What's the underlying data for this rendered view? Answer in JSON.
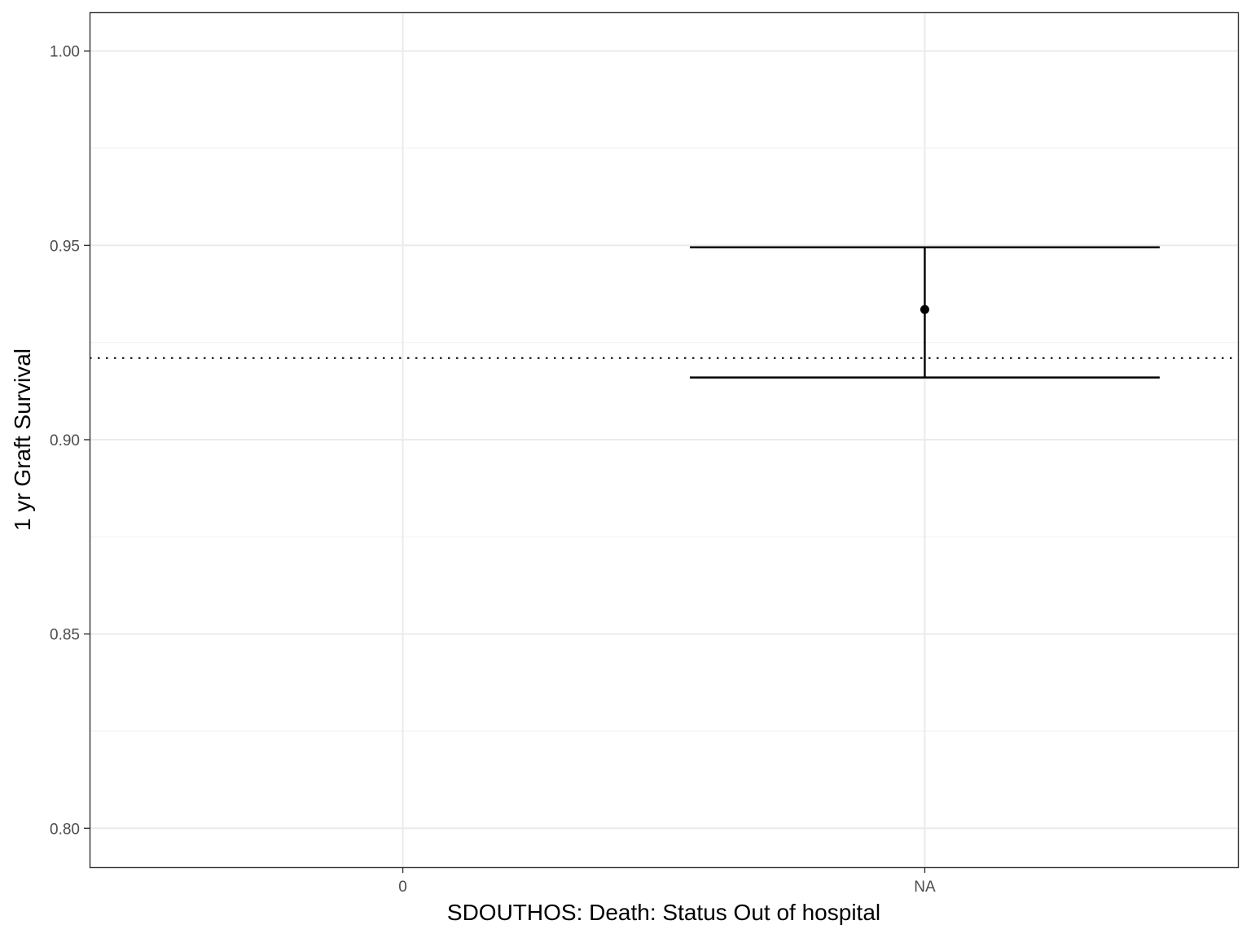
{
  "chart_data": {
    "type": "errorbar",
    "title": "",
    "xlabel": "SDOUTHOS: Death: Status Out of hospital",
    "ylabel": "1 yr Graft Survival",
    "categories": [
      "0",
      "NA"
    ],
    "y_ticks": [
      0.8,
      0.85,
      0.9,
      0.95,
      1.0
    ],
    "y_tick_labels": [
      "0.80",
      "0.85",
      "0.90",
      "0.95",
      "1.00"
    ],
    "ylim": [
      0.79,
      1.01
    ],
    "points": [
      {
        "category": "NA",
        "estimate": 0.9335,
        "lower": 0.916,
        "upper": 0.9495
      }
    ],
    "reference_line": {
      "y": 0.921,
      "style": "dotted"
    },
    "grid": true,
    "legend": "none",
    "colors": {
      "panel_border": "#333333",
      "grid_major": "#ebebeb",
      "grid_minor": "#f2f2f2",
      "tick_label": "#4d4d4d",
      "mark": "#000000"
    }
  }
}
